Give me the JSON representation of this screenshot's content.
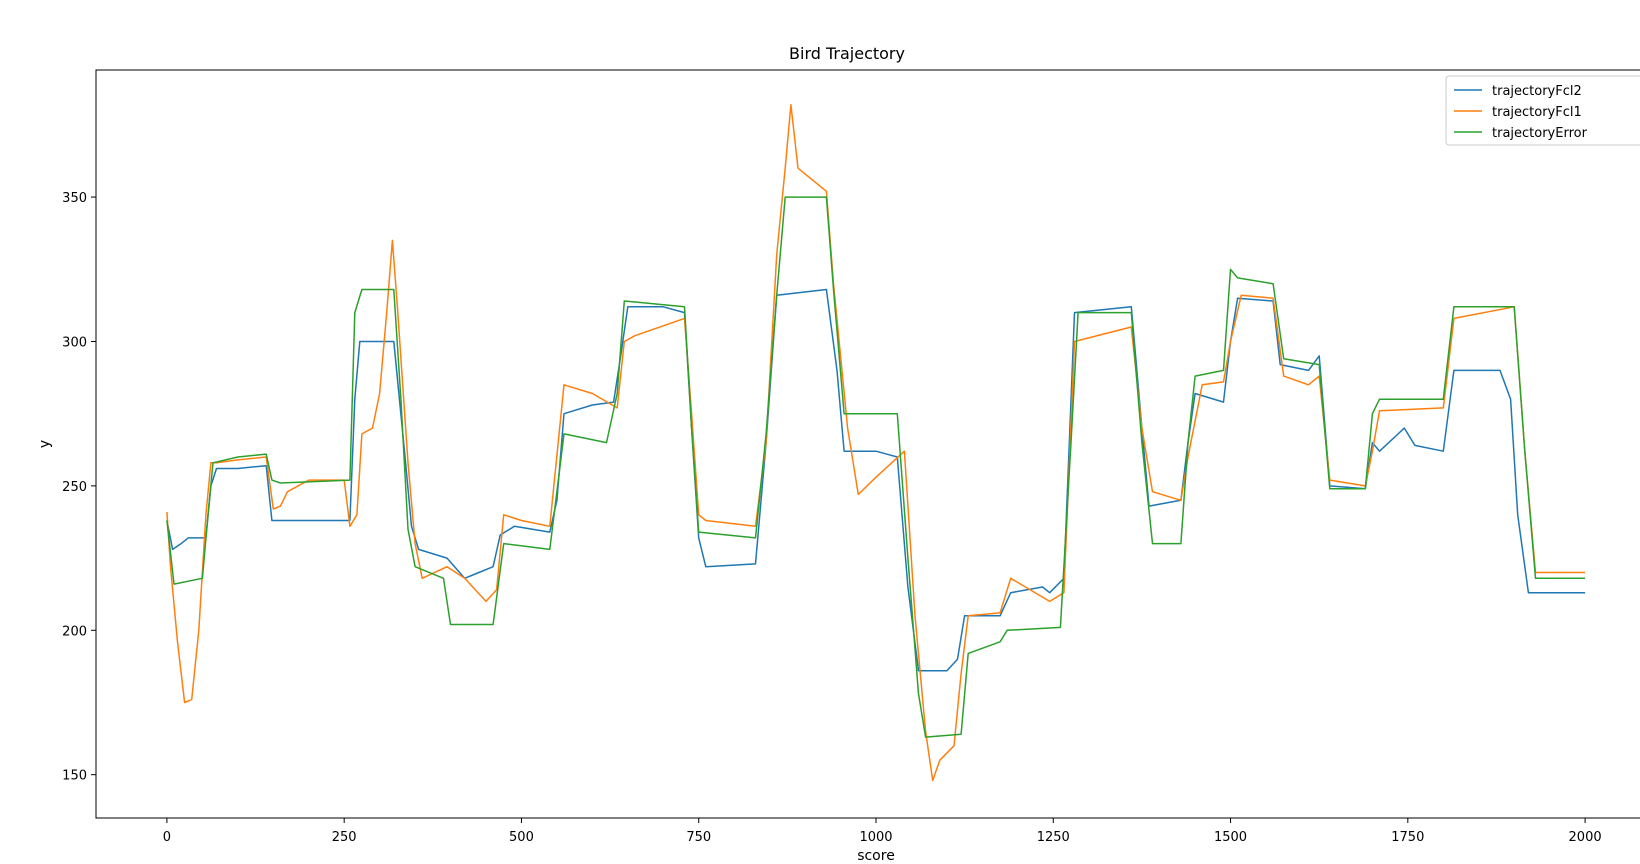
{
  "chart_data": {
    "type": "line",
    "title": "Bird Trajectory",
    "xlabel": "score",
    "ylabel": "y",
    "xlim": [
      -100,
      2100
    ],
    "ylim": [
      135,
      394
    ],
    "xticks": [
      0,
      250,
      500,
      750,
      1000,
      1250,
      1500,
      1750,
      2000
    ],
    "yticks": [
      150,
      200,
      250,
      300,
      350
    ],
    "grid": false,
    "legend_position": "top-right",
    "series": [
      {
        "name": "trajectoryFcl2",
        "color": "#1f77b4",
        "points": [
          [
            0,
            238
          ],
          [
            8,
            228
          ],
          [
            20,
            230
          ],
          [
            30,
            232
          ],
          [
            55,
            232
          ],
          [
            62,
            250
          ],
          [
            70,
            256
          ],
          [
            100,
            256
          ],
          [
            140,
            257
          ],
          [
            148,
            238
          ],
          [
            160,
            238
          ],
          [
            258,
            238
          ],
          [
            265,
            280
          ],
          [
            272,
            300
          ],
          [
            300,
            300
          ],
          [
            320,
            300
          ],
          [
            335,
            262
          ],
          [
            345,
            236
          ],
          [
            355,
            228
          ],
          [
            395,
            225
          ],
          [
            420,
            218
          ],
          [
            440,
            220
          ],
          [
            460,
            222
          ],
          [
            470,
            233
          ],
          [
            490,
            236
          ],
          [
            540,
            234
          ],
          [
            550,
            245
          ],
          [
            560,
            275
          ],
          [
            600,
            278
          ],
          [
            630,
            279
          ],
          [
            640,
            295
          ],
          [
            650,
            312
          ],
          [
            700,
            312
          ],
          [
            730,
            310
          ],
          [
            740,
            270
          ],
          [
            750,
            232
          ],
          [
            760,
            222
          ],
          [
            830,
            223
          ],
          [
            845,
            265
          ],
          [
            860,
            316
          ],
          [
            930,
            318
          ],
          [
            945,
            290
          ],
          [
            955,
            262
          ],
          [
            1000,
            262
          ],
          [
            1030,
            260
          ],
          [
            1045,
            215
          ],
          [
            1060,
            186
          ],
          [
            1100,
            186
          ],
          [
            1115,
            190
          ],
          [
            1125,
            205
          ],
          [
            1150,
            205
          ],
          [
            1175,
            205
          ],
          [
            1190,
            213
          ],
          [
            1235,
            215
          ],
          [
            1245,
            213
          ],
          [
            1265,
            218
          ],
          [
            1280,
            310
          ],
          [
            1360,
            312
          ],
          [
            1375,
            270
          ],
          [
            1385,
            243
          ],
          [
            1430,
            245
          ],
          [
            1440,
            265
          ],
          [
            1450,
            282
          ],
          [
            1490,
            279
          ],
          [
            1500,
            300
          ],
          [
            1510,
            315
          ],
          [
            1560,
            314
          ],
          [
            1570,
            292
          ],
          [
            1610,
            290
          ],
          [
            1625,
            295
          ],
          [
            1640,
            250
          ],
          [
            1690,
            249
          ],
          [
            1700,
            265
          ],
          [
            1710,
            262
          ],
          [
            1745,
            270
          ],
          [
            1760,
            264
          ],
          [
            1800,
            262
          ],
          [
            1815,
            290
          ],
          [
            1880,
            290
          ],
          [
            1895,
            280
          ],
          [
            1905,
            240
          ],
          [
            1920,
            213
          ],
          [
            2000,
            213
          ]
        ]
      },
      {
        "name": "trajectoryFcl1",
        "color": "#ff7f0e",
        "points": [
          [
            0,
            241
          ],
          [
            5,
            222
          ],
          [
            15,
            196
          ],
          [
            25,
            175
          ],
          [
            35,
            176
          ],
          [
            45,
            200
          ],
          [
            55,
            240
          ],
          [
            62,
            258
          ],
          [
            70,
            258
          ],
          [
            100,
            259
          ],
          [
            140,
            260
          ],
          [
            150,
            242
          ],
          [
            160,
            243
          ],
          [
            170,
            248
          ],
          [
            200,
            252
          ],
          [
            250,
            252
          ],
          [
            258,
            236
          ],
          [
            268,
            240
          ],
          [
            275,
            268
          ],
          [
            290,
            270
          ],
          [
            300,
            282
          ],
          [
            310,
            310
          ],
          [
            318,
            335
          ],
          [
            325,
            312
          ],
          [
            340,
            258
          ],
          [
            350,
            230
          ],
          [
            360,
            218
          ],
          [
            395,
            222
          ],
          [
            420,
            218
          ],
          [
            450,
            210
          ],
          [
            465,
            214
          ],
          [
            475,
            240
          ],
          [
            500,
            238
          ],
          [
            540,
            236
          ],
          [
            560,
            285
          ],
          [
            600,
            282
          ],
          [
            635,
            277
          ],
          [
            645,
            300
          ],
          [
            660,
            302
          ],
          [
            730,
            308
          ],
          [
            740,
            275
          ],
          [
            750,
            240
          ],
          [
            760,
            238
          ],
          [
            830,
            236
          ],
          [
            845,
            265
          ],
          [
            860,
            330
          ],
          [
            872,
            360
          ],
          [
            880,
            382
          ],
          [
            890,
            360
          ],
          [
            930,
            352
          ],
          [
            940,
            320
          ],
          [
            960,
            270
          ],
          [
            975,
            247
          ],
          [
            1000,
            253
          ],
          [
            1040,
            262
          ],
          [
            1055,
            205
          ],
          [
            1070,
            165
          ],
          [
            1080,
            148
          ],
          [
            1090,
            155
          ],
          [
            1110,
            160
          ],
          [
            1120,
            185
          ],
          [
            1130,
            205
          ],
          [
            1175,
            206
          ],
          [
            1190,
            218
          ],
          [
            1245,
            210
          ],
          [
            1265,
            213
          ],
          [
            1280,
            300
          ],
          [
            1360,
            305
          ],
          [
            1375,
            270
          ],
          [
            1390,
            248
          ],
          [
            1430,
            245
          ],
          [
            1440,
            260
          ],
          [
            1460,
            285
          ],
          [
            1490,
            286
          ],
          [
            1500,
            300
          ],
          [
            1515,
            316
          ],
          [
            1560,
            315
          ],
          [
            1575,
            288
          ],
          [
            1610,
            285
          ],
          [
            1625,
            288
          ],
          [
            1640,
            252
          ],
          [
            1690,
            250
          ],
          [
            1700,
            262
          ],
          [
            1710,
            276
          ],
          [
            1800,
            277
          ],
          [
            1815,
            308
          ],
          [
            1900,
            312
          ],
          [
            1915,
            262
          ],
          [
            1930,
            220
          ],
          [
            2000,
            220
          ]
        ]
      },
      {
        "name": "trajectoryError",
        "color": "#2ca02c",
        "points": [
          [
            0,
            238
          ],
          [
            10,
            216
          ],
          [
            50,
            218
          ],
          [
            58,
            240
          ],
          [
            65,
            258
          ],
          [
            100,
            260
          ],
          [
            140,
            261
          ],
          [
            148,
            252
          ],
          [
            160,
            251
          ],
          [
            258,
            252
          ],
          [
            265,
            310
          ],
          [
            275,
            318
          ],
          [
            320,
            318
          ],
          [
            330,
            280
          ],
          [
            340,
            235
          ],
          [
            350,
            222
          ],
          [
            390,
            218
          ],
          [
            400,
            202
          ],
          [
            460,
            202
          ],
          [
            475,
            230
          ],
          [
            540,
            228
          ],
          [
            560,
            268
          ],
          [
            620,
            265
          ],
          [
            635,
            282
          ],
          [
            645,
            314
          ],
          [
            730,
            312
          ],
          [
            740,
            270
          ],
          [
            750,
            234
          ],
          [
            830,
            232
          ],
          [
            845,
            268
          ],
          [
            860,
            316
          ],
          [
            872,
            350
          ],
          [
            930,
            350
          ],
          [
            940,
            318
          ],
          [
            955,
            275
          ],
          [
            1030,
            275
          ],
          [
            1045,
            225
          ],
          [
            1060,
            178
          ],
          [
            1070,
            163
          ],
          [
            1120,
            164
          ],
          [
            1130,
            192
          ],
          [
            1175,
            196
          ],
          [
            1185,
            200
          ],
          [
            1260,
            201
          ],
          [
            1275,
            265
          ],
          [
            1285,
            310
          ],
          [
            1360,
            310
          ],
          [
            1375,
            265
          ],
          [
            1390,
            230
          ],
          [
            1430,
            230
          ],
          [
            1440,
            265
          ],
          [
            1450,
            288
          ],
          [
            1490,
            290
          ],
          [
            1500,
            325
          ],
          [
            1510,
            322
          ],
          [
            1560,
            320
          ],
          [
            1575,
            294
          ],
          [
            1625,
            292
          ],
          [
            1640,
            249
          ],
          [
            1690,
            249
          ],
          [
            1700,
            275
          ],
          [
            1710,
            280
          ],
          [
            1800,
            280
          ],
          [
            1815,
            312
          ],
          [
            1900,
            312
          ],
          [
            1915,
            262
          ],
          [
            1930,
            218
          ],
          [
            2000,
            218
          ]
        ]
      }
    ]
  }
}
